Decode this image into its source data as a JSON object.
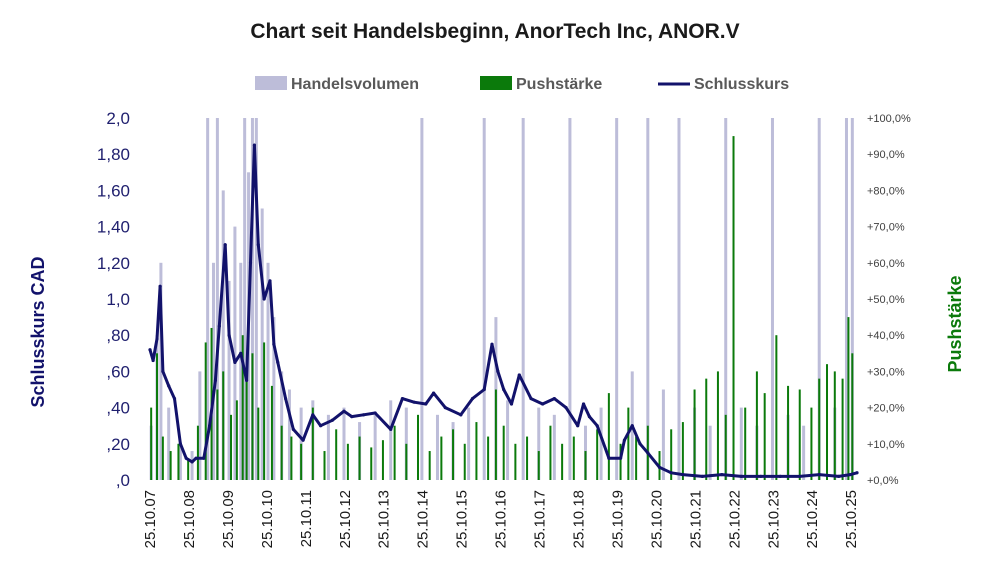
{
  "chart_data": {
    "type": "line",
    "title": "Chart seit Handelsbeginn, AnorTech Inc, ANOR.V",
    "legend_position": "top-center",
    "grid": false,
    "legend": [
      {
        "label": "Handelsvolumen",
        "color": "#bdbdd9",
        "kind": "bar"
      },
      {
        "label": "Pushstärke",
        "color": "#0b7a0b",
        "kind": "bar"
      },
      {
        "label": "Schlusskurs",
        "color": "#12126b",
        "kind": "line"
      }
    ],
    "ylabel_left": "Schlusskurs CAD",
    "ylabel_right": "Pushstärke",
    "y_left": {
      "range": [
        0,
        2.0
      ],
      "ticks": [
        0,
        0.2,
        0.4,
        0.6,
        0.8,
        1.0,
        1.2,
        1.4,
        1.6,
        1.8,
        2.0
      ],
      "tick_labels": [
        ",0",
        ",20",
        ",40",
        ",60",
        ",80",
        "1,0",
        "1,20",
        "1,40",
        "1,60",
        "1,80",
        "2,0"
      ]
    },
    "y_right": {
      "range": [
        0,
        100
      ],
      "ticks": [
        0,
        10,
        20,
        30,
        40,
        50,
        60,
        70,
        80,
        90,
        100
      ],
      "tick_labels": [
        "+0,0%",
        "+10,0%",
        "+20,0%",
        "+30,0%",
        "+40,0%",
        "+50,0%",
        "+60,0%",
        "+70,0%",
        "+80,0%",
        "+90,0%",
        "+100,0%"
      ]
    },
    "x_range": [
      2007.82,
      2025.97
    ],
    "x_ticks": [
      2007.82,
      2008.82,
      2009.82,
      2010.82,
      2011.82,
      2012.82,
      2013.82,
      2014.82,
      2015.82,
      2016.82,
      2017.82,
      2018.82,
      2019.82,
      2020.82,
      2021.82,
      2022.82,
      2023.82,
      2024.82,
      2025.82
    ],
    "x_tick_labels": [
      "25.10.07",
      "25.10.08",
      "25.10.09",
      "25.10.10",
      "25.10.11",
      "25.10.12",
      "25.10.13",
      "25.10.14",
      "25.10.15",
      "25.10.16",
      "25.10.17",
      "25.10.18",
      "25.10.19",
      "25.10.20",
      "25.10.21",
      "25.10.22",
      "25.10.23",
      "25.10.24",
      "25.10.25"
    ],
    "series": [
      {
        "name": "Schlusskurs",
        "axis": "left",
        "color": "#12126b",
        "x": [
          2007.82,
          2007.9,
          2008.0,
          2008.08,
          2008.15,
          2008.3,
          2008.45,
          2008.6,
          2008.75,
          2008.9,
          2009.0,
          2009.2,
          2009.35,
          2009.5,
          2009.6,
          2009.75,
          2009.85,
          2010.0,
          2010.15,
          2010.3,
          2010.4,
          2010.5,
          2010.6,
          2010.75,
          2010.9,
          2011.0,
          2011.1,
          2011.3,
          2011.5,
          2011.75,
          2012.0,
          2012.2,
          2012.5,
          2012.8,
          2013.0,
          2013.3,
          2013.6,
          2014.0,
          2014.3,
          2014.6,
          2014.9,
          2015.1,
          2015.4,
          2015.8,
          2016.1,
          2016.4,
          2016.6,
          2016.75,
          2016.9,
          2017.1,
          2017.3,
          2017.6,
          2017.9,
          2018.2,
          2018.5,
          2018.8,
          2018.95,
          2019.1,
          2019.3,
          2019.6,
          2019.9,
          2020.0,
          2020.2,
          2020.4,
          2020.6,
          2020.9,
          2021.2,
          2021.5,
          2022.0,
          2022.5,
          2023.0,
          2023.5,
          2024.0,
          2024.5,
          2025.0,
          2025.5,
          2025.8,
          2025.97
        ],
        "values": [
          0.72,
          0.66,
          0.78,
          1.07,
          0.6,
          0.52,
          0.45,
          0.2,
          0.12,
          0.1,
          0.12,
          0.12,
          0.3,
          0.55,
          0.85,
          1.3,
          0.8,
          0.65,
          0.7,
          0.55,
          1.2,
          1.85,
          1.3,
          1.0,
          1.1,
          0.75,
          0.65,
          0.45,
          0.28,
          0.22,
          0.36,
          0.3,
          0.33,
          0.38,
          0.35,
          0.36,
          0.37,
          0.28,
          0.45,
          0.43,
          0.42,
          0.48,
          0.4,
          0.36,
          0.45,
          0.5,
          0.75,
          0.6,
          0.5,
          0.42,
          0.58,
          0.45,
          0.42,
          0.45,
          0.4,
          0.3,
          0.42,
          0.35,
          0.3,
          0.12,
          0.12,
          0.22,
          0.3,
          0.2,
          0.15,
          0.07,
          0.04,
          0.03,
          0.02,
          0.03,
          0.02,
          0.02,
          0.02,
          0.02,
          0.03,
          0.02,
          0.03,
          0.04
        ]
      },
      {
        "name": "Pushstärke",
        "axis": "right",
        "color": "#0b7a0b",
        "x": [
          2007.85,
          2008.0,
          2008.15,
          2008.35,
          2008.55,
          2008.8,
          2009.05,
          2009.25,
          2009.4,
          2009.55,
          2009.7,
          2009.9,
          2010.05,
          2010.2,
          2010.3,
          2010.45,
          2010.6,
          2010.75,
          2010.95,
          2011.2,
          2011.45,
          2011.7,
          2012.0,
          2012.3,
          2012.6,
          2012.9,
          2013.2,
          2013.5,
          2013.8,
          2014.1,
          2014.4,
          2014.7,
          2015.0,
          2015.3,
          2015.6,
          2015.9,
          2016.2,
          2016.5,
          2016.7,
          2016.9,
          2017.2,
          2017.5,
          2017.8,
          2018.1,
          2018.4,
          2018.7,
          2019.0,
          2019.3,
          2019.6,
          2019.9,
          2020.1,
          2020.3,
          2020.6,
          2020.9,
          2021.2,
          2021.5,
          2021.8,
          2022.1,
          2022.4,
          2022.6,
          2022.8,
          2023.1,
          2023.4,
          2023.6,
          2023.9,
          2024.2,
          2024.5,
          2024.8,
          2025.0,
          2025.2,
          2025.4,
          2025.6,
          2025.75,
          2025.85
        ],
        "values": [
          20,
          35,
          12,
          8,
          10,
          6,
          15,
          38,
          42,
          25,
          30,
          18,
          22,
          40,
          28,
          35,
          20,
          38,
          26,
          15,
          12,
          10,
          20,
          8,
          14,
          10,
          12,
          9,
          11,
          15,
          10,
          18,
          8,
          12,
          14,
          10,
          16,
          12,
          25,
          15,
          10,
          12,
          8,
          15,
          10,
          12,
          8,
          14,
          24,
          10,
          20,
          12,
          15,
          8,
          14,
          16,
          25,
          28,
          30,
          18,
          95,
          20,
          30,
          24,
          40,
          26,
          25,
          20,
          28,
          32,
          30,
          28,
          45,
          35
        ]
      },
      {
        "name": "Handelsvolumen",
        "axis": "right",
        "color": "#bdbdd9",
        "x": [
          2007.85,
          2008.0,
          2008.1,
          2008.3,
          2008.6,
          2008.9,
          2009.1,
          2009.3,
          2009.45,
          2009.55,
          2009.7,
          2009.85,
          2010.0,
          2010.15,
          2010.25,
          2010.35,
          2010.45,
          2010.55,
          2010.7,
          2010.85,
          2011.0,
          2011.2,
          2011.4,
          2011.7,
          2012.0,
          2012.4,
          2012.8,
          2013.2,
          2013.6,
          2014.0,
          2014.4,
          2014.8,
          2015.2,
          2015.6,
          2016.0,
          2016.4,
          2016.7,
          2017.0,
          2017.4,
          2017.8,
          2018.2,
          2018.6,
          2019.0,
          2019.4,
          2019.8,
          2020.2,
          2020.6,
          2021.0,
          2021.4,
          2021.8,
          2022.2,
          2022.6,
          2023.0,
          2023.4,
          2023.8,
          2024.2,
          2024.6,
          2025.0,
          2025.4,
          2025.7,
          2025.85
        ],
        "values": [
          15,
          40,
          60,
          20,
          10,
          8,
          30,
          100,
          60,
          100,
          80,
          55,
          70,
          60,
          100,
          85,
          100,
          100,
          75,
          60,
          45,
          30,
          25,
          20,
          22,
          18,
          20,
          16,
          18,
          22,
          20,
          100,
          18,
          16,
          20,
          100,
          45,
          22,
          100,
          20,
          18,
          100,
          15,
          20,
          100,
          30,
          100,
          25,
          100,
          20,
          15,
          100,
          20,
          15,
          100,
          18,
          15,
          100,
          20,
          100,
          100
        ]
      }
    ]
  }
}
